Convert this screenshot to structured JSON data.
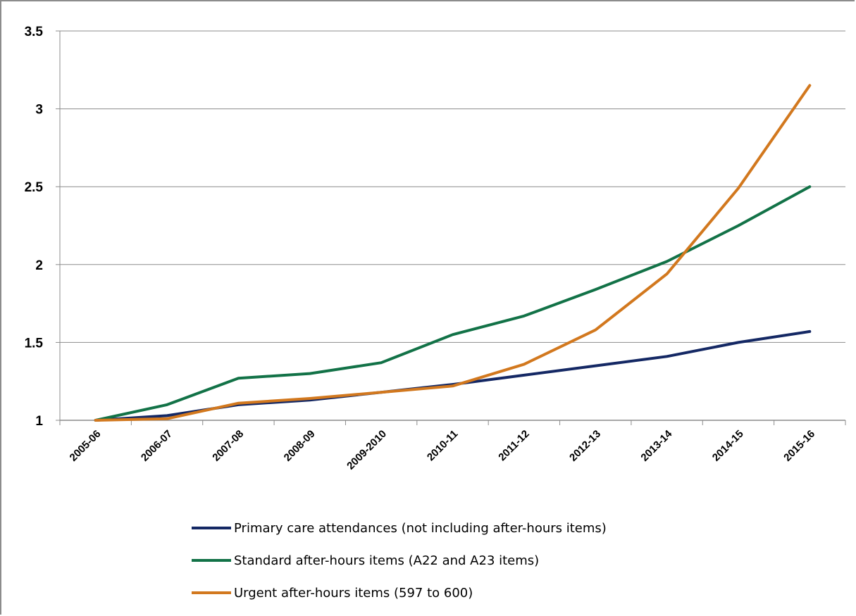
{
  "chart_data": {
    "type": "line",
    "title": "",
    "xlabel": "",
    "ylabel": "",
    "categories": [
      "2005-06",
      "2006-07",
      "2007-08",
      "2008-09",
      "2009-2010",
      "2010-11",
      "2011-12",
      "2012-13",
      "2013-14",
      "2014-15",
      "2015-16"
    ],
    "y_ticks": [
      "1",
      "1.5",
      "2",
      "2.5",
      "3",
      "3.5"
    ],
    "ylim": [
      1,
      3.5
    ],
    "grid": true,
    "legend_position": "bottom",
    "series": [
      {
        "name": "Primary care attendances (not including after-hours items)",
        "color": "#142864",
        "values": [
          1.0,
          1.03,
          1.1,
          1.13,
          1.18,
          1.23,
          1.29,
          1.35,
          1.41,
          1.5,
          1.57
        ]
      },
      {
        "name": "Standard after-hours items (A22 and A23 items)",
        "color": "#127247",
        "values": [
          1.0,
          1.1,
          1.27,
          1.3,
          1.37,
          1.55,
          1.67,
          1.84,
          2.02,
          2.25,
          2.5
        ]
      },
      {
        "name": "Urgent after-hours items (597 to 600)",
        "color": "#d2781e",
        "values": [
          1.0,
          1.01,
          1.11,
          1.14,
          1.18,
          1.22,
          1.36,
          1.58,
          1.94,
          2.49,
          3.15
        ]
      }
    ]
  }
}
